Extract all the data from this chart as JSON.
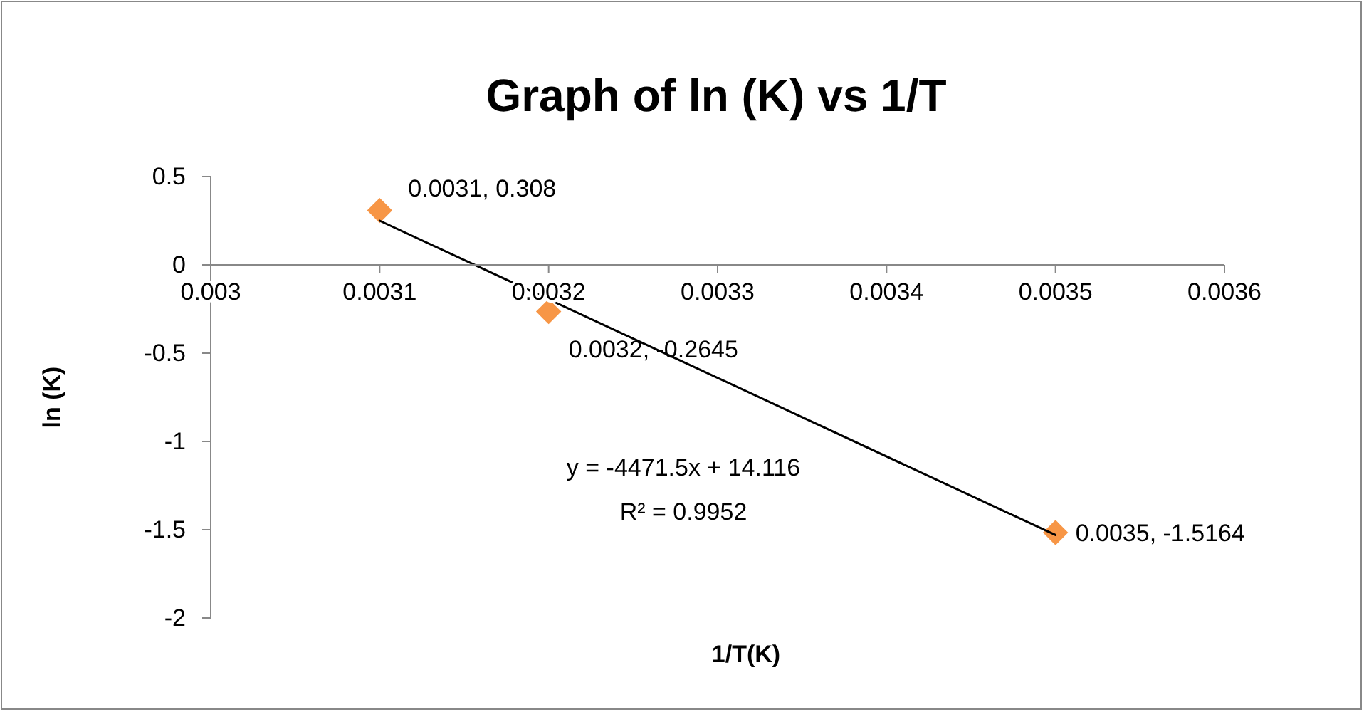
{
  "chart_data": {
    "type": "scatter",
    "title": "Graph of ln (K) vs 1/T",
    "xlabel": "1/T(K)",
    "ylabel": "ln (K)",
    "xlim": [
      0.003,
      0.0036
    ],
    "xticks": [
      0.003,
      0.0031,
      0.0032,
      0.0033,
      0.0034,
      0.0035,
      0.0036
    ],
    "ylim": [
      -2,
      0.5
    ],
    "yticks": [
      0.5,
      0,
      -0.5,
      -1,
      -1.5,
      -2
    ],
    "grid": false,
    "series": [
      {
        "color": "#f79646",
        "marker": "diamond",
        "x": [
          0.0031,
          0.0032,
          0.0035
        ],
        "values": [
          0.308,
          -0.2645,
          -1.5164
        ],
        "value_labels": [
          "0.0031, 0.308",
          "0.0032, -0.2645",
          "0.0035, -1.5164"
        ]
      },
      {
        "type": "line",
        "color": "#000000",
        "marker": "none",
        "line_style": "solid",
        "x": [
          0.0031,
          0.0035
        ],
        "values": [
          0.25,
          -1.53
        ]
      }
    ],
    "annotations": [
      "y = -4471.5x + 14.116",
      "R² = 0.9952"
    ]
  }
}
